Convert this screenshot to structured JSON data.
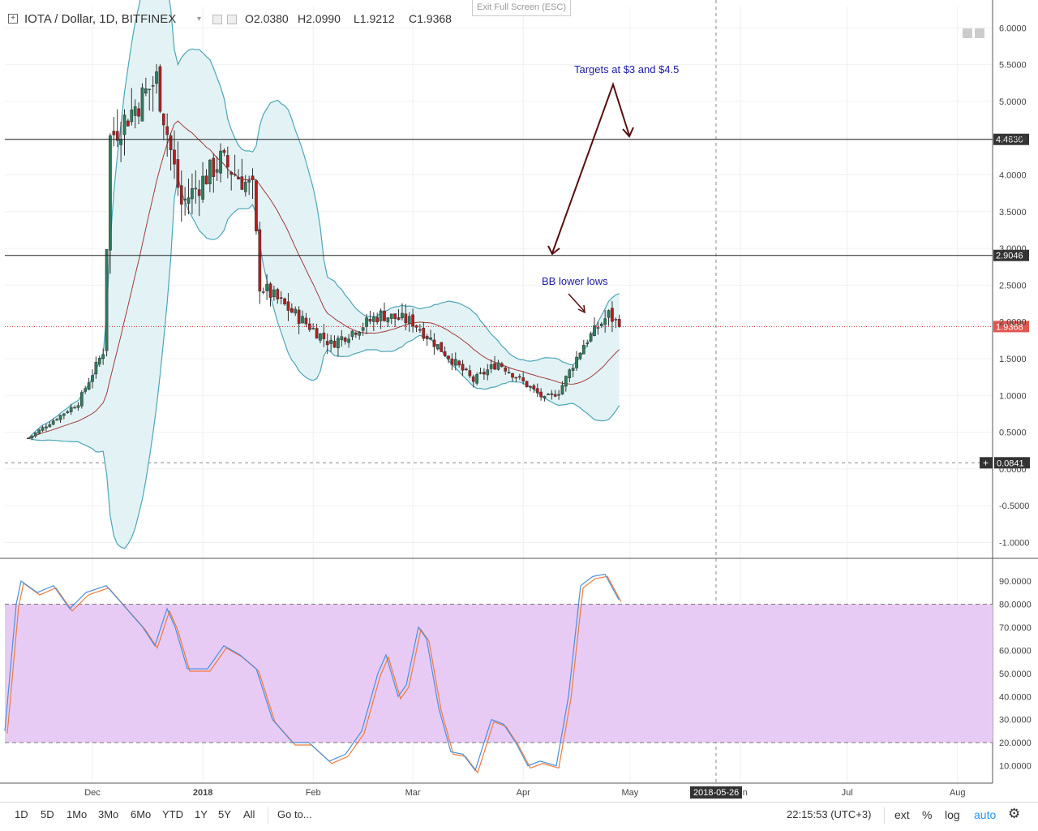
{
  "header": {
    "title": "IOTA / Dollar, 1D, BITFINEX",
    "open": "O2.0380",
    "high": "H2.0990",
    "low": "L1.9212",
    "close": "C1.9368"
  },
  "exit_fullscreen": "Exit Full Screen (ESC)",
  "colors": {
    "up": "#2e7d5b",
    "down": "#b71c1c",
    "bb_band": "#4da6b8",
    "bb_fill": "#e3f3f5",
    "bb_mid": "#a33a3a",
    "stoch_k": "#4a90d9",
    "stoch_d": "#f07b3a",
    "stoch_fill": "#e8cbf5",
    "annotation": "#1a1aa8",
    "arrow": "#5a0f0f"
  },
  "price_axis": {
    "ticks": [
      "6.0000",
      "5.5000",
      "5.0000",
      "4.5000",
      "4.0000",
      "3.5000",
      "3.0000",
      "2.5000",
      "2.0000",
      "1.5000",
      "1.0000",
      "0.5000",
      "0.0000",
      "-0.5000",
      "-1.0000"
    ],
    "tick_values": [
      6,
      5.5,
      5,
      4.5,
      4,
      3.5,
      3,
      2.5,
      2,
      1.5,
      1,
      0.5,
      0,
      -0.5,
      -1
    ],
    "range": [
      -1.2,
      6.3
    ]
  },
  "price_badges": [
    {
      "label": "4.4830",
      "value": 4.483,
      "style": "dark"
    },
    {
      "label": "2.9046",
      "value": 2.9046,
      "style": "dark"
    },
    {
      "label": "1.9368",
      "value": 1.9368,
      "style": "red"
    },
    {
      "label": "0.0841",
      "value": 0.0841,
      "style": "dark"
    }
  ],
  "stoch_axis": {
    "ticks": [
      "90.0000",
      "80.0000",
      "70.0000",
      "60.0000",
      "50.0000",
      "40.0000",
      "30.0000",
      "20.0000",
      "10.0000"
    ],
    "tick_values": [
      90,
      80,
      70,
      60,
      50,
      40,
      30,
      20,
      10
    ],
    "upper_band": 80,
    "lower_band": 20
  },
  "time_axis": {
    "labels": [
      "Dec",
      "2018",
      "Feb",
      "Mar",
      "Apr",
      "May",
      "Jun",
      "Jul",
      "Aug"
    ],
    "crosshair_label": "2018-05-26"
  },
  "annotations": {
    "targets": "Targets at $3 and $4.5",
    "bb": "BB lower lows"
  },
  "chart_data": {
    "type": "candlestick",
    "series": [
      {
        "name": "IOTA / Dollar",
        "approx_path": [
          {
            "date": "2017-11-13",
            "close": 0.42
          },
          {
            "date": "2017-11-27",
            "close": 0.9
          },
          {
            "date": "2017-12-04",
            "close": 1.6
          },
          {
            "date": "2017-12-06",
            "close": 4.5
          },
          {
            "date": "2017-12-19",
            "close": 5.3
          },
          {
            "date": "2017-12-26",
            "close": 3.6
          },
          {
            "date": "2018-01-06",
            "close": 4.2
          },
          {
            "date": "2018-01-15",
            "close": 3.8
          },
          {
            "date": "2018-01-17",
            "close": 2.5
          },
          {
            "date": "2018-02-06",
            "close": 1.7
          },
          {
            "date": "2018-02-20",
            "close": 2.1
          },
          {
            "date": "2018-03-01",
            "close": 2.0
          },
          {
            "date": "2018-03-18",
            "close": 1.2
          },
          {
            "date": "2018-03-25",
            "close": 1.45
          },
          {
            "date": "2018-04-07",
            "close": 0.95
          },
          {
            "date": "2018-04-11",
            "close": 1.05
          },
          {
            "date": "2018-04-18",
            "close": 1.7
          },
          {
            "date": "2018-04-25",
            "close": 2.1
          },
          {
            "date": "2018-04-28",
            "close": 1.94
          }
        ]
      }
    ],
    "indicators": [
      "Bollinger Bands (20, 2)",
      "Stochastic"
    ],
    "horizontal_levels": [
      4.483,
      2.9046,
      1.9368,
      0.0841
    ]
  },
  "bottom_bar": {
    "timeframes": [
      "1D",
      "5D",
      "1Mo",
      "3Mo",
      "6Mo",
      "YTD",
      "1Y",
      "5Y",
      "All"
    ],
    "goto": "Go to...",
    "clock": "22:15:53 (UTC+3)",
    "ext": "ext",
    "percent": "%",
    "log": "log",
    "auto": "auto",
    "settings_icon": "gear-icon"
  }
}
